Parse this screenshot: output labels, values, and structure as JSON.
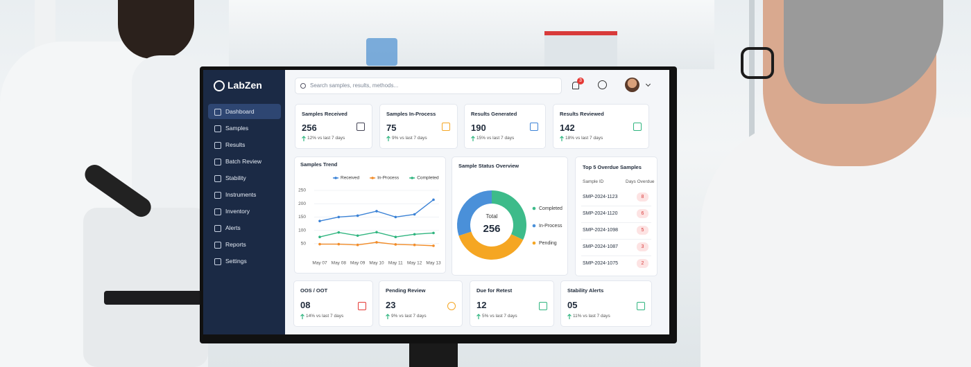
{
  "sidebar": {
    "brand": "LabZen",
    "menu": [
      "Dashboard",
      "Samples",
      "Results",
      "Batch Review",
      "Stability",
      "Instruments",
      "Inventory",
      "Alerts",
      "Reports",
      "Settings"
    ]
  },
  "header": {
    "search_placeholder": "Search samples, results, methods...",
    "notifications": 3
  },
  "kpis": [
    {
      "title": "Samples Received",
      "value": 256,
      "change": "12% vs last 7 days"
    },
    {
      "title": "Samples In-Process",
      "value": 75,
      "change": "9% vs last 7 days"
    },
    {
      "title": "Results Generated",
      "value": 190,
      "change": "15% vs last 7 days"
    },
    {
      "title": "Results Reviewed",
      "value": 142,
      "change": "18% vs last 7 days"
    }
  ],
  "chart_data": [
    {
      "type": "line",
      "title": "Samples Trend",
      "categories": [
        "May 07",
        "May 08",
        "May 09",
        "May 10",
        "May 11",
        "May 12",
        "May 13"
      ],
      "series": [
        {
          "name": "Received",
          "color": "#3b82d6",
          "values": [
            135,
            150,
            155,
            172,
            150,
            160,
            215
          ]
        },
        {
          "name": "In-Process",
          "color": "#f28c28",
          "values": [
            48,
            48,
            45,
            55,
            47,
            45,
            42
          ]
        },
        {
          "name": "Completed",
          "color": "#2fb57f",
          "values": [
            75,
            92,
            80,
            93,
            75,
            85,
            90
          ]
        }
      ],
      "ylim": [
        0,
        250
      ],
      "yticks": [
        50,
        100,
        150,
        200,
        250
      ],
      "grid": true
    },
    {
      "type": "pie",
      "title": "Sample Status Overview",
      "center_label": "Total",
      "center_value": 256,
      "categories": [
        "Completed",
        "In-Process",
        "Pending"
      ],
      "values": [
        32,
        30,
        38
      ],
      "colors": [
        "#3dbb8a",
        "#4a90d9",
        "#f5a623"
      ]
    }
  ],
  "overdue": {
    "title": "Top 5 Overdue Samples",
    "columns": [
      "Sample ID",
      "Days Overdue"
    ],
    "rows": [
      [
        "SMP-2024-1123",
        8
      ],
      [
        "SMP-2024-1120",
        6
      ],
      [
        "SMP-2024-1098",
        5
      ],
      [
        "SMP-2024-1087",
        3
      ],
      [
        "SMP-2024-1075",
        2
      ]
    ]
  },
  "alerts": [
    {
      "title": "OOS / OOT",
      "value": "08",
      "change": "14% vs last 7 days"
    },
    {
      "title": "Pending Review",
      "value": "23",
      "change": "9% vs last 7 days"
    },
    {
      "title": "Due for Retest",
      "value": "12",
      "change": "5% vs last 7 days"
    },
    {
      "title": "Stability Alerts",
      "value": "05",
      "change": "11% vs last 7 days"
    }
  ]
}
